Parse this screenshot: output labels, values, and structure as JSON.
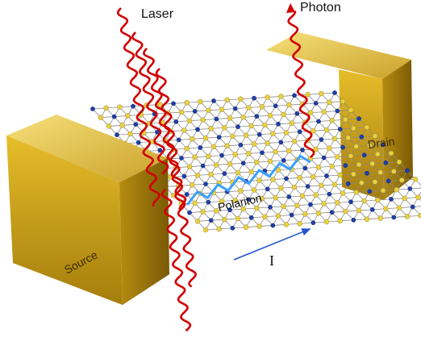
{
  "labels": {
    "laser": "Laser",
    "photon": "Photon",
    "drain": "Drain",
    "source": "Source",
    "polariton": "Polariton",
    "current": "I"
  },
  "colors": {
    "gold_light": "#f2d24a",
    "gold_mid": "#d8ad1f",
    "gold_dark": "#8a6a08",
    "atom_yellow": "#e8d046",
    "atom_blue": "#1f3fa6",
    "bond": "#8a8a8a",
    "wave_red": "#d00000",
    "polariton_blue": "#3aa0ff",
    "current_arrow": "#2255cc"
  },
  "icons": [
    "laser-wave-icon",
    "photon-wave-icon",
    "polariton-wave-icon",
    "current-arrow-icon"
  ]
}
